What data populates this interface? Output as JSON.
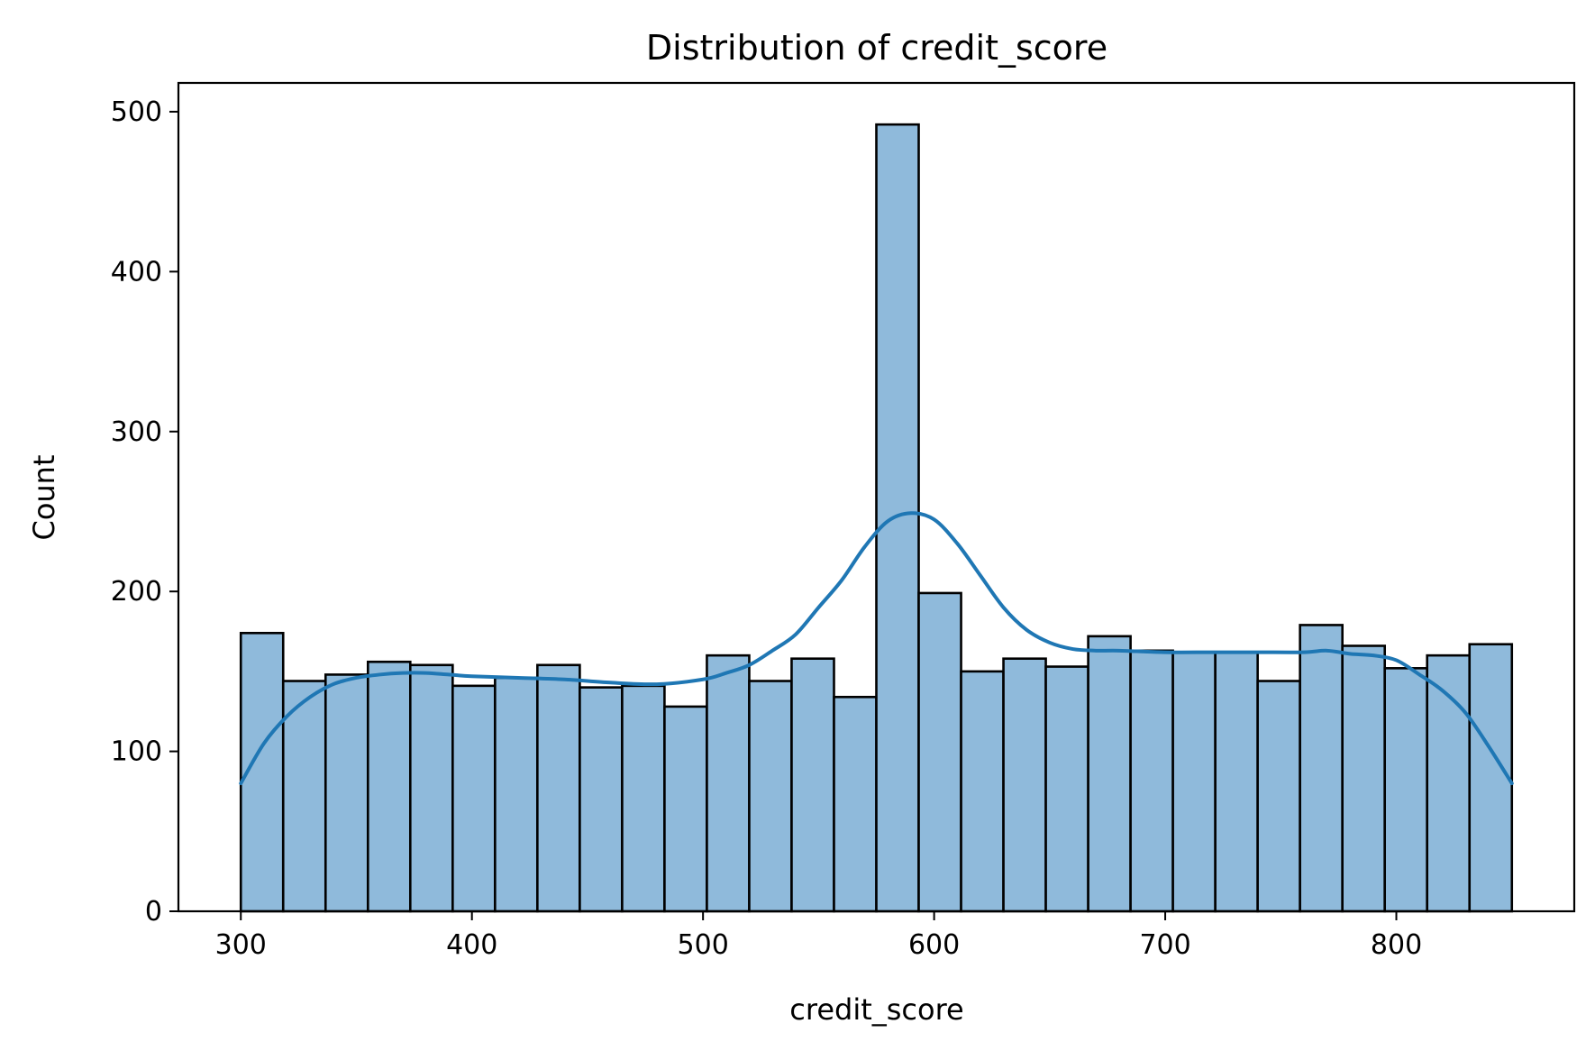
{
  "chart_data": {
    "type": "bar",
    "title": "Distribution of credit_score",
    "xlabel": "credit_score",
    "ylabel": "Count",
    "xlim": [
      273,
      877
    ],
    "ylim": [
      0,
      518
    ],
    "xticks": [
      300,
      400,
      500,
      600,
      700,
      800
    ],
    "yticks": [
      0,
      100,
      200,
      300,
      400,
      500
    ],
    "grid": false,
    "legend": "none",
    "colors": {
      "bar_fill": "#8fbadb",
      "bar_edge": "#000000",
      "kde_line": "#1f77b4"
    },
    "bins": {
      "edges": [
        300,
        318.33,
        336.67,
        355,
        373.33,
        391.67,
        410,
        428.33,
        446.67,
        465,
        483.33,
        501.67,
        520,
        538.33,
        556.67,
        575,
        593.33,
        611.67,
        630,
        648.33,
        666.67,
        685,
        703.33,
        721.67,
        740,
        758.33,
        776.67,
        795,
        813.33,
        831.67,
        850
      ],
      "counts": [
        174,
        144,
        148,
        156,
        154,
        141,
        146,
        154,
        140,
        141,
        128,
        160,
        144,
        158,
        134,
        492,
        199,
        150,
        158,
        153,
        172,
        163,
        162,
        162,
        144,
        179,
        166,
        152,
        160,
        167
      ]
    },
    "kde": {
      "x": [
        300,
        310,
        320,
        330,
        340,
        350,
        360,
        370,
        380,
        390,
        400,
        420,
        440,
        460,
        480,
        500,
        510,
        520,
        530,
        540,
        550,
        560,
        570,
        580,
        590,
        600,
        610,
        620,
        630,
        640,
        650,
        660,
        670,
        680,
        700,
        720,
        740,
        760,
        770,
        780,
        790,
        800,
        810,
        820,
        830,
        840,
        850
      ],
      "y": [
        80,
        105,
        122,
        134,
        142,
        146,
        148,
        149,
        149,
        148,
        147,
        146,
        145,
        143,
        142,
        145,
        149,
        154,
        163,
        173,
        190,
        207,
        228,
        244,
        249,
        245,
        230,
        210,
        190,
        176,
        168,
        164,
        163,
        163,
        162,
        162,
        162,
        162,
        163,
        161,
        160,
        157,
        148,
        138,
        124,
        103,
        80
      ]
    }
  }
}
